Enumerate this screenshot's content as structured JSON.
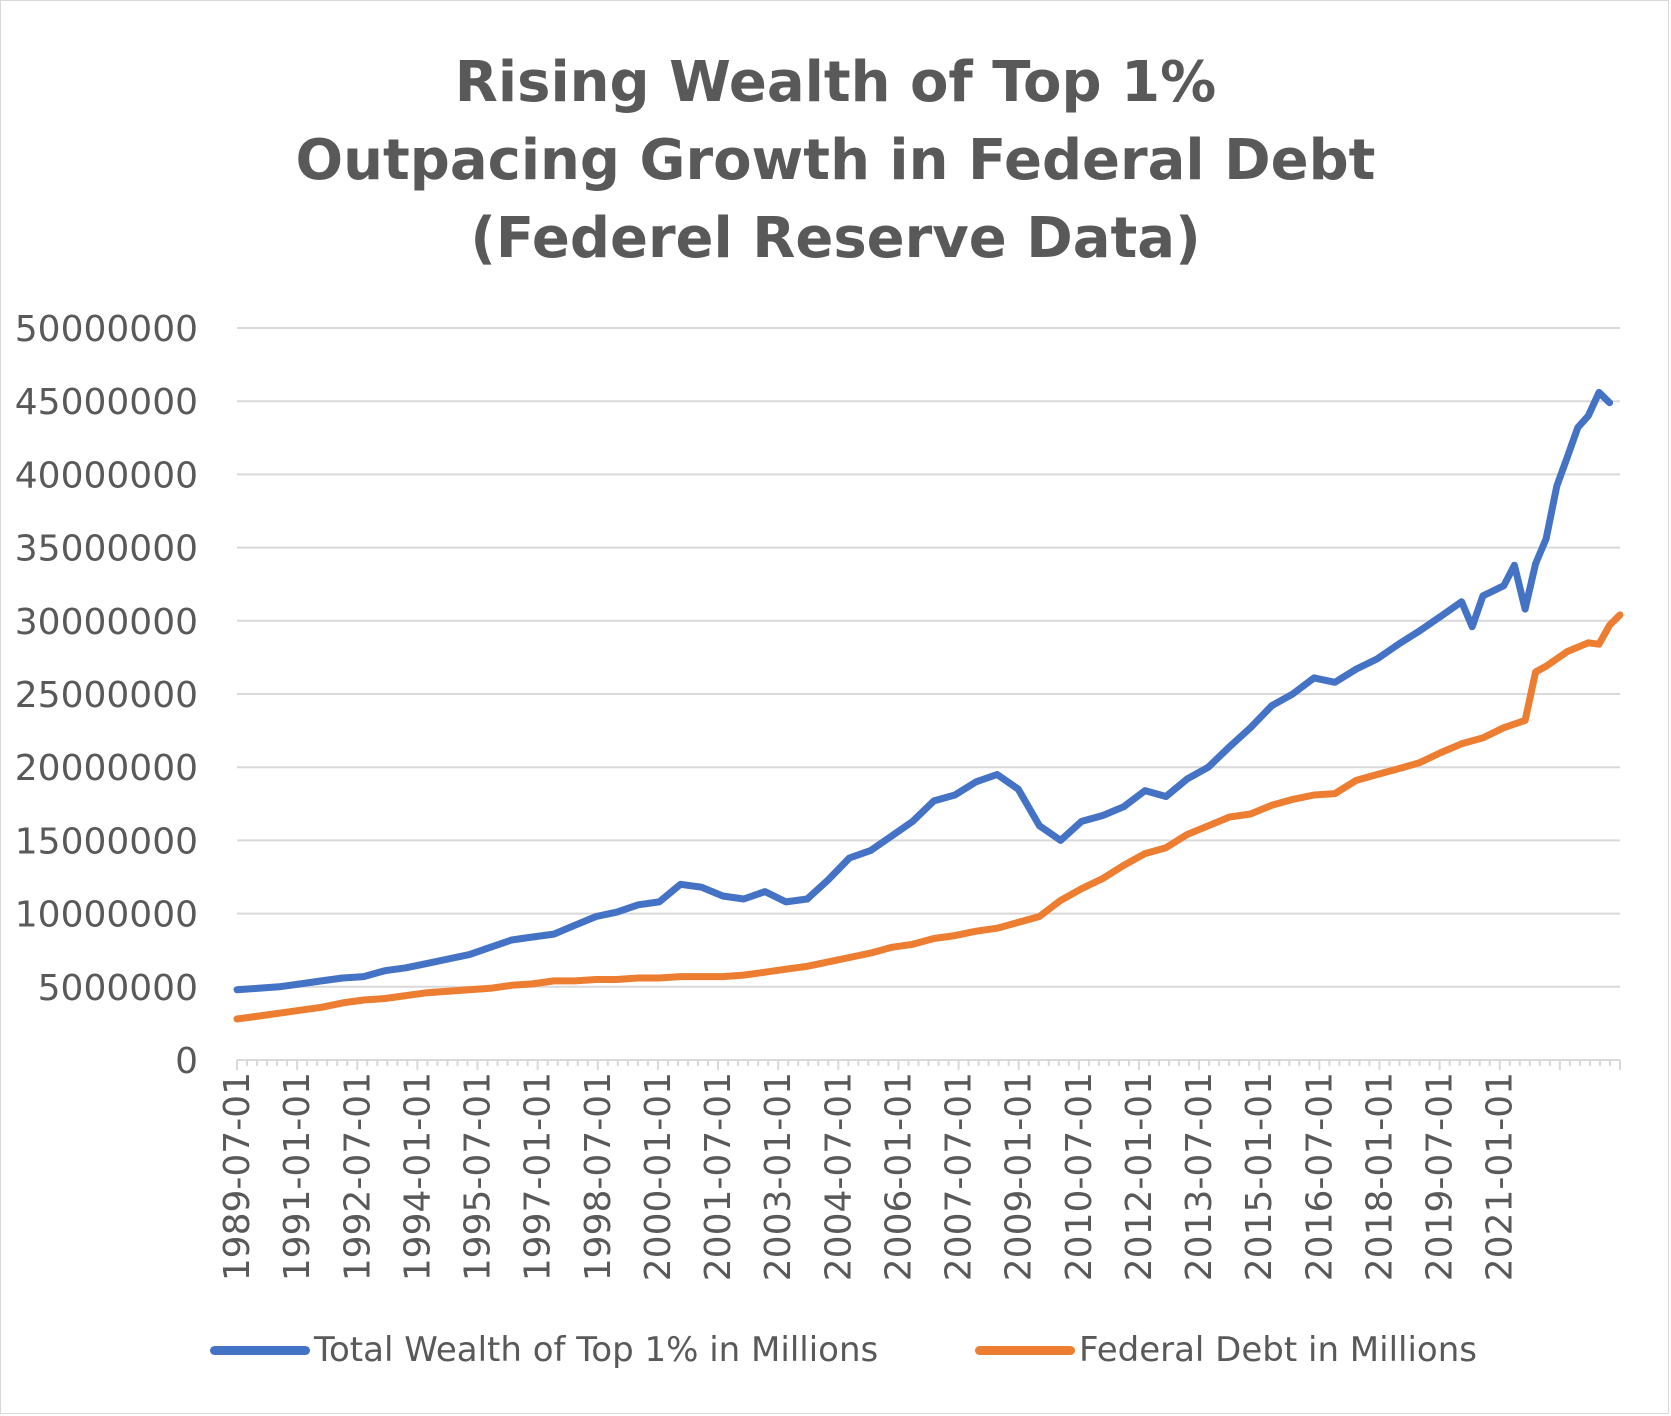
{
  "chart_data": {
    "type": "line",
    "title_lines": [
      "Rising Wealth of Top 1%",
      "Outpacing Growth in Federal Debt",
      "(Federel Reserve Data)"
    ],
    "xlabel": "",
    "ylabel": "",
    "ylim": [
      0,
      50000000
    ],
    "y_ticks": [
      "50000000",
      "45000000",
      "40000000",
      "35000000",
      "30000000",
      "25000000",
      "20000000",
      "15000000",
      "10000000",
      "5000000",
      "0"
    ],
    "x_tick_labels": [
      "1989-07-01",
      "1991-01-01",
      "1992-07-01",
      "1994-01-01",
      "1995-07-01",
      "1997-01-01",
      "1998-07-01",
      "2000-01-01",
      "2001-07-01",
      "2003-01-01",
      "2004-07-01",
      "2006-01-01",
      "2007-07-01",
      "2009-01-01",
      "2010-07-01",
      "2012-01-01",
      "2013-07-01",
      "2015-01-01",
      "2016-07-01",
      "2018-01-01",
      "2019-07-01",
      "2021-01-01"
    ],
    "grid": "horizontal",
    "legend_position": "bottom",
    "series": [
      {
        "name": "Total Wealth of Top 1% in Millions",
        "color": "#4472C4",
        "points": [
          [
            "1989-07-01",
            4800000
          ],
          [
            "1990-01-01",
            4900000
          ],
          [
            "1990-07-01",
            5000000
          ],
          [
            "1991-01-01",
            5200000
          ],
          [
            "1991-07-01",
            5400000
          ],
          [
            "1992-01-01",
            5600000
          ],
          [
            "1992-07-01",
            5700000
          ],
          [
            "1993-01-01",
            6100000
          ],
          [
            "1993-07-01",
            6300000
          ],
          [
            "1994-01-01",
            6600000
          ],
          [
            "1994-07-01",
            6900000
          ],
          [
            "1995-01-01",
            7200000
          ],
          [
            "1995-07-01",
            7700000
          ],
          [
            "1996-01-01",
            8200000
          ],
          [
            "1996-07-01",
            8400000
          ],
          [
            "1997-01-01",
            8600000
          ],
          [
            "1997-07-01",
            9200000
          ],
          [
            "1998-01-01",
            9800000
          ],
          [
            "1998-07-01",
            10100000
          ],
          [
            "1999-01-01",
            10600000
          ],
          [
            "1999-07-01",
            10800000
          ],
          [
            "2000-01-01",
            12000000
          ],
          [
            "2000-07-01",
            11800000
          ],
          [
            "2001-01-01",
            11200000
          ],
          [
            "2001-07-01",
            11000000
          ],
          [
            "2002-01-01",
            11500000
          ],
          [
            "2002-07-01",
            10800000
          ],
          [
            "2003-01-01",
            11000000
          ],
          [
            "2003-07-01",
            12300000
          ],
          [
            "2004-01-01",
            13800000
          ],
          [
            "2004-07-01",
            14300000
          ],
          [
            "2005-01-01",
            15300000
          ],
          [
            "2005-07-01",
            16300000
          ],
          [
            "2006-01-01",
            17700000
          ],
          [
            "2006-07-01",
            18100000
          ],
          [
            "2007-01-01",
            19000000
          ],
          [
            "2007-07-01",
            19500000
          ],
          [
            "2008-01-01",
            18500000
          ],
          [
            "2008-07-01",
            16000000
          ],
          [
            "2009-01-01",
            15000000
          ],
          [
            "2009-07-01",
            16300000
          ],
          [
            "2010-01-01",
            16700000
          ],
          [
            "2010-07-01",
            17300000
          ],
          [
            "2011-01-01",
            18400000
          ],
          [
            "2011-07-01",
            18000000
          ],
          [
            "2012-01-01",
            19200000
          ],
          [
            "2012-07-01",
            20000000
          ],
          [
            "2013-01-01",
            21400000
          ],
          [
            "2013-07-01",
            22700000
          ],
          [
            "2014-01-01",
            24200000
          ],
          [
            "2014-07-01",
            25000000
          ],
          [
            "2015-01-01",
            26100000
          ],
          [
            "2015-07-01",
            25800000
          ],
          [
            "2016-01-01",
            26700000
          ],
          [
            "2016-07-01",
            27400000
          ],
          [
            "2017-01-01",
            28400000
          ],
          [
            "2017-07-01",
            29300000
          ],
          [
            "2018-01-01",
            30300000
          ],
          [
            "2018-07-01",
            31300000
          ],
          [
            "2018-10-01",
            29600000
          ],
          [
            "2019-01-01",
            31700000
          ],
          [
            "2019-07-01",
            32400000
          ],
          [
            "2019-10-01",
            33800000
          ],
          [
            "2020-01-01",
            30800000
          ],
          [
            "2020-04-01",
            33900000
          ],
          [
            "2020-07-01",
            35600000
          ],
          [
            "2020-10-01",
            39200000
          ],
          [
            "2021-01-01",
            41200000
          ],
          [
            "2021-04-01",
            43200000
          ],
          [
            "2021-07-01",
            44000000
          ],
          [
            "2021-10-01",
            45600000
          ],
          [
            "2022-01-01",
            44900000
          ]
        ]
      },
      {
        "name": "Federal Debt in Millions",
        "color": "#ED7D31",
        "points": [
          [
            "1989-07-01",
            2800000
          ],
          [
            "1990-01-01",
            3000000
          ],
          [
            "1990-07-01",
            3200000
          ],
          [
            "1991-01-01",
            3400000
          ],
          [
            "1991-07-01",
            3600000
          ],
          [
            "1992-01-01",
            3900000
          ],
          [
            "1992-07-01",
            4100000
          ],
          [
            "1993-01-01",
            4200000
          ],
          [
            "1993-07-01",
            4400000
          ],
          [
            "1994-01-01",
            4600000
          ],
          [
            "1994-07-01",
            4700000
          ],
          [
            "1995-01-01",
            4800000
          ],
          [
            "1995-07-01",
            4900000
          ],
          [
            "1996-01-01",
            5100000
          ],
          [
            "1996-07-01",
            5200000
          ],
          [
            "1997-01-01",
            5400000
          ],
          [
            "1997-07-01",
            5400000
          ],
          [
            "1998-01-01",
            5500000
          ],
          [
            "1998-07-01",
            5500000
          ],
          [
            "1999-01-01",
            5600000
          ],
          [
            "1999-07-01",
            5600000
          ],
          [
            "2000-01-01",
            5700000
          ],
          [
            "2000-07-01",
            5700000
          ],
          [
            "2001-01-01",
            5700000
          ],
          [
            "2001-07-01",
            5800000
          ],
          [
            "2002-01-01",
            6000000
          ],
          [
            "2002-07-01",
            6200000
          ],
          [
            "2003-01-01",
            6400000
          ],
          [
            "2003-07-01",
            6700000
          ],
          [
            "2004-01-01",
            7000000
          ],
          [
            "2004-07-01",
            7300000
          ],
          [
            "2005-01-01",
            7700000
          ],
          [
            "2005-07-01",
            7900000
          ],
          [
            "2006-01-01",
            8300000
          ],
          [
            "2006-07-01",
            8500000
          ],
          [
            "2007-01-01",
            8800000
          ],
          [
            "2007-07-01",
            9000000
          ],
          [
            "2008-01-01",
            9400000
          ],
          [
            "2008-07-01",
            9800000
          ],
          [
            "2009-01-01",
            10900000
          ],
          [
            "2009-07-01",
            11700000
          ],
          [
            "2010-01-01",
            12400000
          ],
          [
            "2010-07-01",
            13300000
          ],
          [
            "2011-01-01",
            14100000
          ],
          [
            "2011-07-01",
            14500000
          ],
          [
            "2012-01-01",
            15400000
          ],
          [
            "2012-07-01",
            16000000
          ],
          [
            "2013-01-01",
            16600000
          ],
          [
            "2013-07-01",
            16800000
          ],
          [
            "2014-01-01",
            17400000
          ],
          [
            "2014-07-01",
            17800000
          ],
          [
            "2015-01-01",
            18100000
          ],
          [
            "2015-07-01",
            18200000
          ],
          [
            "2016-01-01",
            19100000
          ],
          [
            "2016-07-01",
            19500000
          ],
          [
            "2017-01-01",
            19900000
          ],
          [
            "2017-07-01",
            20300000
          ],
          [
            "2018-01-01",
            21000000
          ],
          [
            "2018-07-01",
            21600000
          ],
          [
            "2019-01-01",
            22000000
          ],
          [
            "2019-07-01",
            22700000
          ],
          [
            "2020-01-01",
            23200000
          ],
          [
            "2020-04-01",
            26500000
          ],
          [
            "2020-07-01",
            26900000
          ],
          [
            "2021-01-01",
            27900000
          ],
          [
            "2021-07-01",
            28500000
          ],
          [
            "2021-10-01",
            28400000
          ],
          [
            "2022-01-01",
            29700000
          ],
          [
            "2022-04-01",
            30400000
          ]
        ]
      }
    ]
  }
}
